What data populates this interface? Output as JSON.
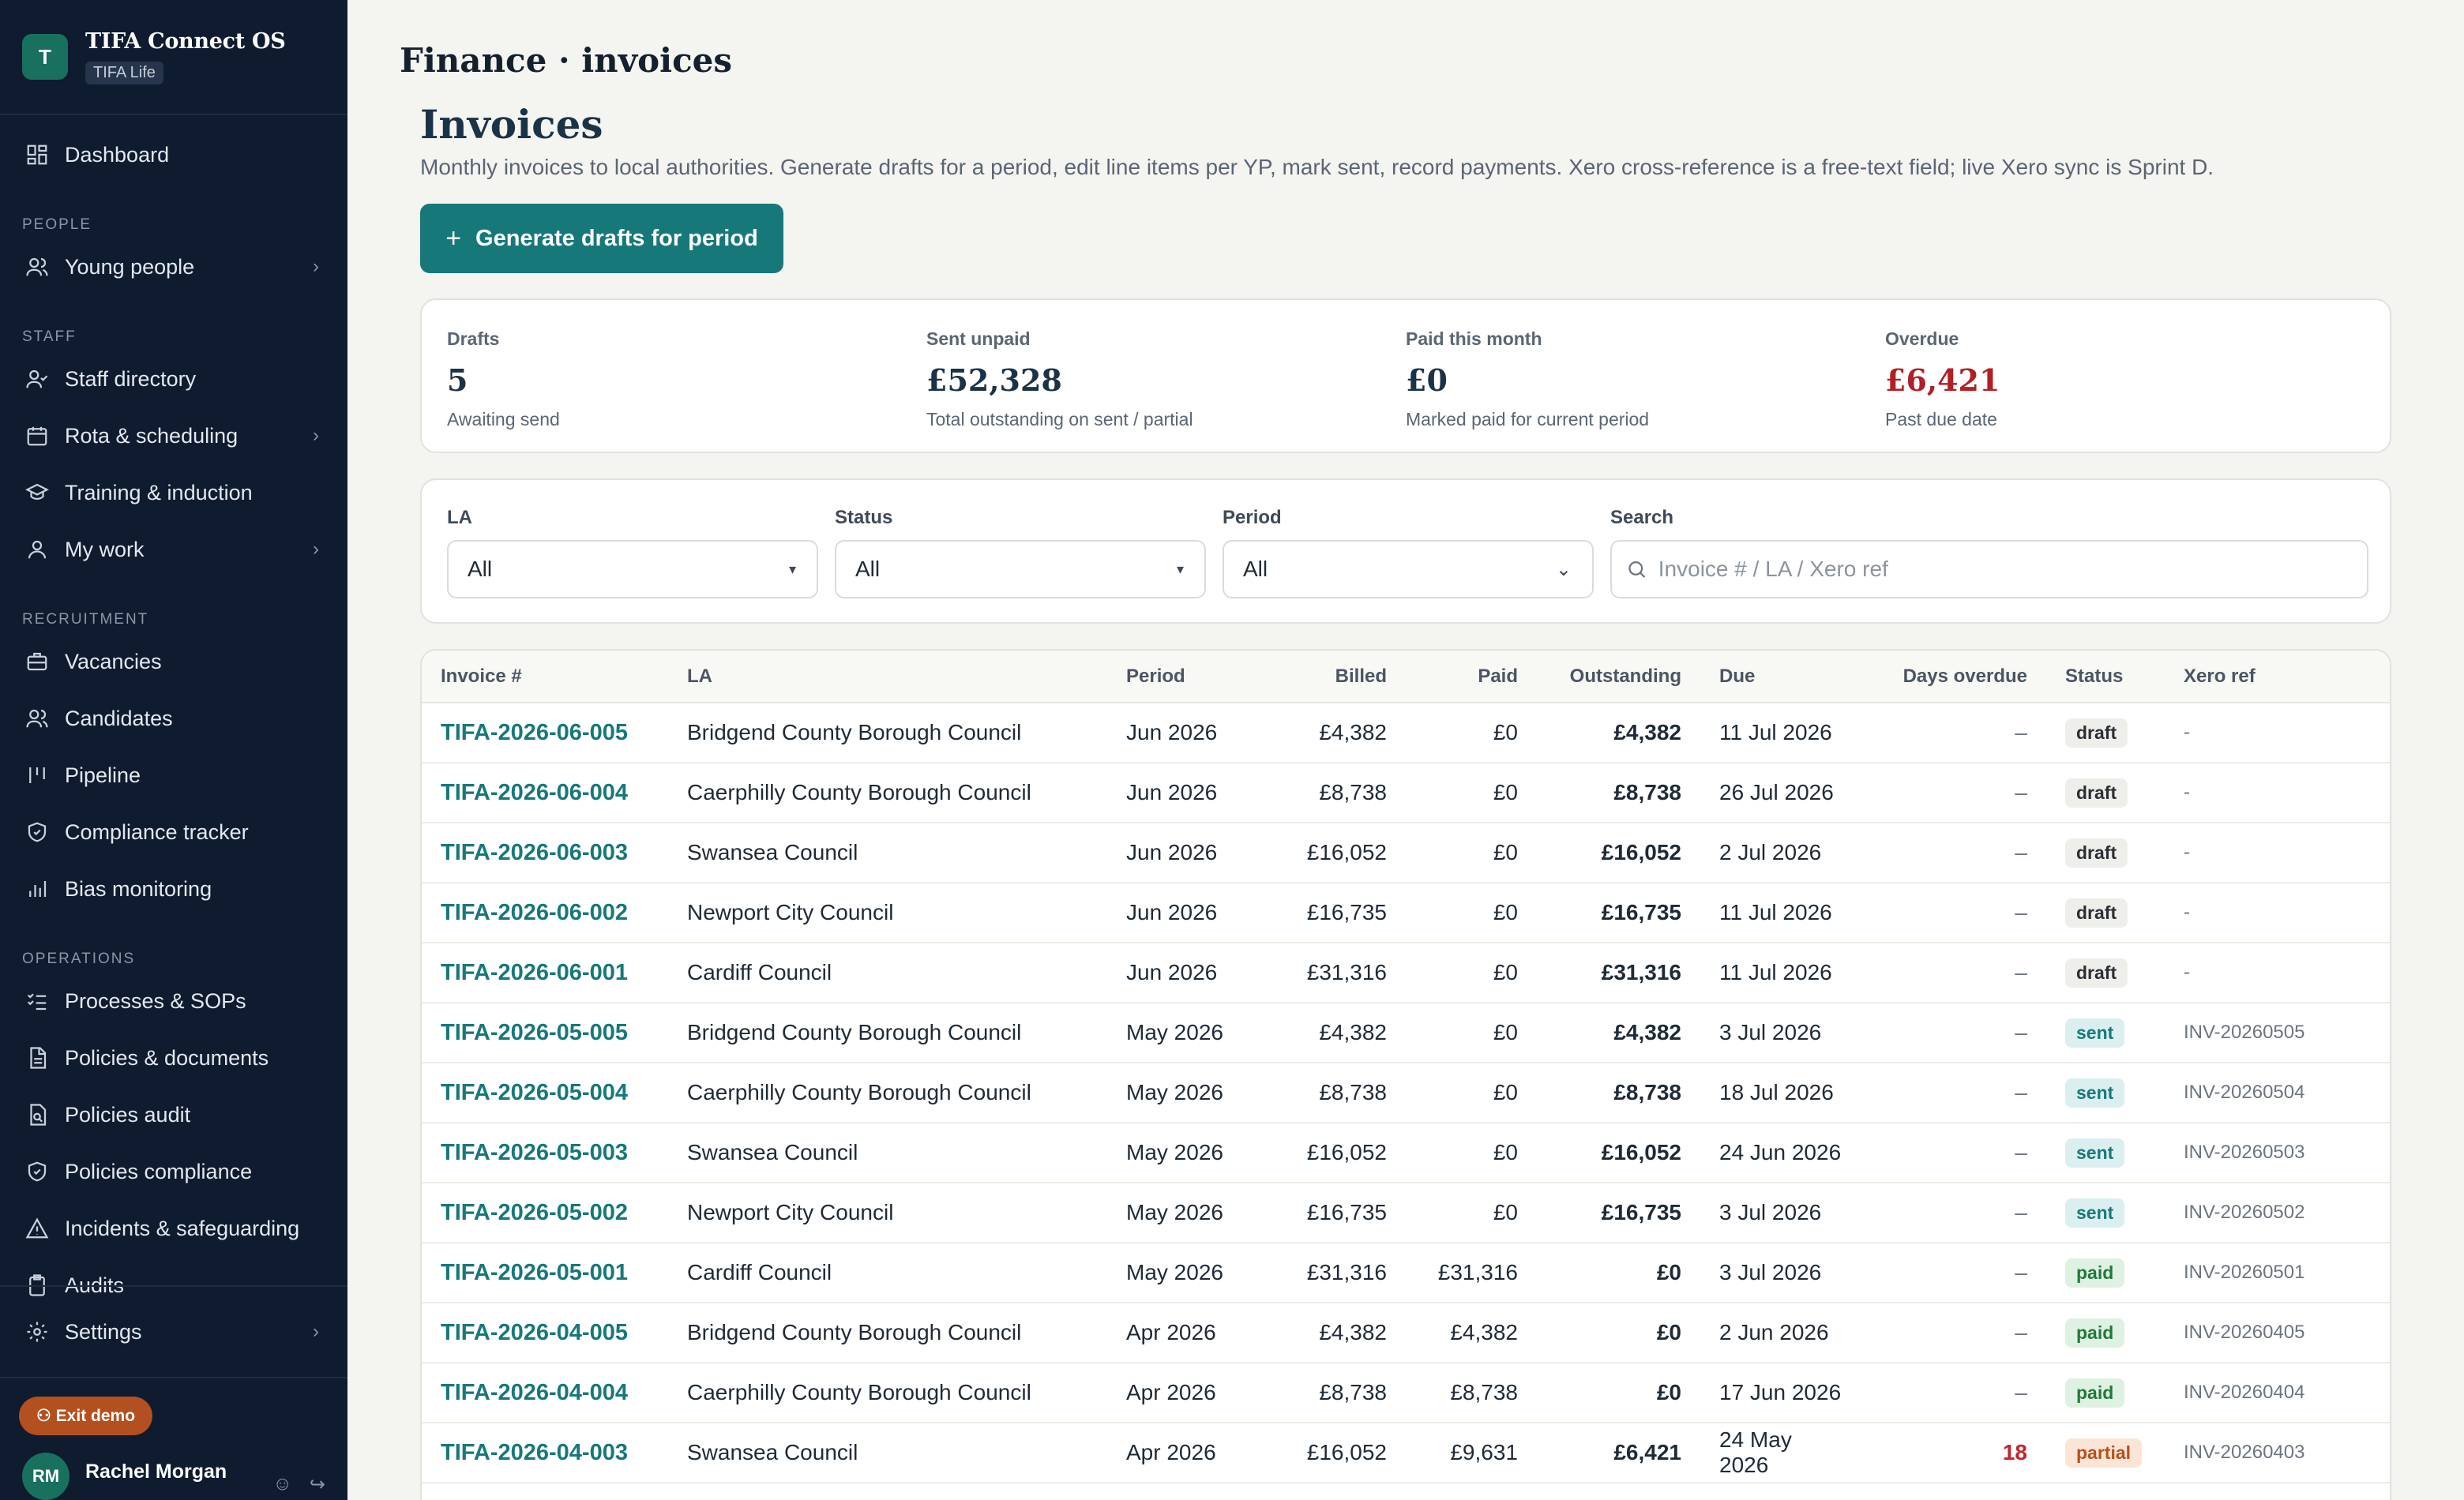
{
  "app": {
    "name": "TIFA Connect OS",
    "tag": "TIFA Life",
    "logo_letter": "T"
  },
  "sidebar": {
    "dashboard": {
      "label": "Dashboard",
      "icon": "dashboard-icon"
    },
    "sections": [
      {
        "title": "PEOPLE",
        "items": [
          {
            "label": "Young people",
            "icon": "users-icon",
            "chevron": true
          }
        ]
      },
      {
        "title": "STAFF",
        "items": [
          {
            "label": "Staff directory",
            "icon": "user-check-icon",
            "chevron": false
          },
          {
            "label": "Rota & scheduling",
            "icon": "calendar-icon",
            "chevron": true
          },
          {
            "label": "Training & induction",
            "icon": "graduation-cap-icon",
            "chevron": false
          },
          {
            "label": "My work",
            "icon": "user-icon",
            "chevron": true
          }
        ]
      },
      {
        "title": "RECRUITMENT",
        "items": [
          {
            "label": "Vacancies",
            "icon": "briefcase-icon",
            "chevron": false
          },
          {
            "label": "Candidates",
            "icon": "users-icon",
            "chevron": false
          },
          {
            "label": "Pipeline",
            "icon": "kanban-icon",
            "chevron": false
          },
          {
            "label": "Compliance tracker",
            "icon": "shield-check-icon",
            "chevron": false
          },
          {
            "label": "Bias monitoring",
            "icon": "bar-chart-icon",
            "chevron": false
          }
        ]
      },
      {
        "title": "OPERATIONS",
        "items": [
          {
            "label": "Processes & SOPs",
            "icon": "list-checks-icon",
            "chevron": false
          },
          {
            "label": "Policies & documents",
            "icon": "file-text-icon",
            "chevron": false
          },
          {
            "label": "Policies audit",
            "icon": "file-search-icon",
            "chevron": false
          },
          {
            "label": "Policies compliance",
            "icon": "shield-check-icon",
            "chevron": false
          },
          {
            "label": "Incidents & safeguarding",
            "icon": "alert-triangle-icon",
            "chevron": false
          },
          {
            "label": "Audits",
            "icon": "clipboard-icon",
            "chevron": false
          }
        ]
      }
    ],
    "settings": {
      "label": "Settings",
      "icon": "gear-icon"
    },
    "exit_demo": "Exit demo",
    "user": {
      "initials": "RM",
      "name": "Rachel Morgan"
    }
  },
  "header": {
    "breadcrumb": "Finance · invoices"
  },
  "page": {
    "title": "Invoices",
    "description": "Monthly invoices to local authorities. Generate drafts for a period, edit line items per YP, mark sent, record payments. Xero cross-reference is a free-text field; live Xero sync is Sprint D.",
    "generate_button": "Generate drafts for period"
  },
  "stats": [
    {
      "label": "Drafts",
      "value": "5",
      "sub": "Awaiting send",
      "color": "#1b3346"
    },
    {
      "label": "Sent unpaid",
      "value": "£52,328",
      "sub": "Total outstanding on sent / partial",
      "color": "#1b3346"
    },
    {
      "label": "Paid this month",
      "value": "£0",
      "sub": "Marked paid for current period",
      "color": "#1b3346"
    },
    {
      "label": "Overdue",
      "value": "£6,421",
      "sub": "Past due date",
      "color": "#b21f24"
    }
  ],
  "filters": {
    "la": {
      "label": "LA",
      "value": "All"
    },
    "status": {
      "label": "Status",
      "value": "All"
    },
    "period": {
      "label": "Period",
      "value": "All"
    },
    "search": {
      "label": "Search",
      "placeholder": "Invoice # / LA / Xero ref",
      "value": ""
    }
  },
  "table": {
    "columns": [
      "Invoice #",
      "LA",
      "Period",
      "Billed",
      "Paid",
      "Outstanding",
      "Due",
      "Days overdue",
      "Status",
      "Xero ref"
    ],
    "rows": [
      {
        "invoice": "TIFA-2026-06-005",
        "la": "Bridgend County Borough Council",
        "period": "Jun 2026",
        "billed": "£4,382",
        "paid": "£0",
        "outstanding": "£4,382",
        "due": "11 Jul 2026",
        "days_overdue": "–",
        "status": "draft",
        "xero": "-"
      },
      {
        "invoice": "TIFA-2026-06-004",
        "la": "Caerphilly County Borough Council",
        "period": "Jun 2026",
        "billed": "£8,738",
        "paid": "£0",
        "outstanding": "£8,738",
        "due": "26 Jul 2026",
        "days_overdue": "–",
        "status": "draft",
        "xero": "-"
      },
      {
        "invoice": "TIFA-2026-06-003",
        "la": "Swansea Council",
        "period": "Jun 2026",
        "billed": "£16,052",
        "paid": "£0",
        "outstanding": "£16,052",
        "due": "2 Jul 2026",
        "days_overdue": "–",
        "status": "draft",
        "xero": "-"
      },
      {
        "invoice": "TIFA-2026-06-002",
        "la": "Newport City Council",
        "period": "Jun 2026",
        "billed": "£16,735",
        "paid": "£0",
        "outstanding": "£16,735",
        "due": "11 Jul 2026",
        "days_overdue": "–",
        "status": "draft",
        "xero": "-"
      },
      {
        "invoice": "TIFA-2026-06-001",
        "la": "Cardiff Council",
        "period": "Jun 2026",
        "billed": "£31,316",
        "paid": "£0",
        "outstanding": "£31,316",
        "due": "11 Jul 2026",
        "days_overdue": "–",
        "status": "draft",
        "xero": "-"
      },
      {
        "invoice": "TIFA-2026-05-005",
        "la": "Bridgend County Borough Council",
        "period": "May 2026",
        "billed": "£4,382",
        "paid": "£0",
        "outstanding": "£4,382",
        "due": "3 Jul 2026",
        "days_overdue": "–",
        "status": "sent",
        "xero": "INV-20260505"
      },
      {
        "invoice": "TIFA-2026-05-004",
        "la": "Caerphilly County Borough Council",
        "period": "May 2026",
        "billed": "£8,738",
        "paid": "£0",
        "outstanding": "£8,738",
        "due": "18 Jul 2026",
        "days_overdue": "–",
        "status": "sent",
        "xero": "INV-20260504"
      },
      {
        "invoice": "TIFA-2026-05-003",
        "la": "Swansea Council",
        "period": "May 2026",
        "billed": "£16,052",
        "paid": "£0",
        "outstanding": "£16,052",
        "due": "24 Jun 2026",
        "days_overdue": "–",
        "status": "sent",
        "xero": "INV-20260503"
      },
      {
        "invoice": "TIFA-2026-05-002",
        "la": "Newport City Council",
        "period": "May 2026",
        "billed": "£16,735",
        "paid": "£0",
        "outstanding": "£16,735",
        "due": "3 Jul 2026",
        "days_overdue": "–",
        "status": "sent",
        "xero": "INV-20260502"
      },
      {
        "invoice": "TIFA-2026-05-001",
        "la": "Cardiff Council",
        "period": "May 2026",
        "billed": "£31,316",
        "paid": "£31,316",
        "outstanding": "£0",
        "due": "3 Jul 2026",
        "days_overdue": "–",
        "status": "paid",
        "xero": "INV-20260501"
      },
      {
        "invoice": "TIFA-2026-04-005",
        "la": "Bridgend County Borough Council",
        "period": "Apr 2026",
        "billed": "£4,382",
        "paid": "£4,382",
        "outstanding": "£0",
        "due": "2 Jun 2026",
        "days_overdue": "–",
        "status": "paid",
        "xero": "INV-20260405"
      },
      {
        "invoice": "TIFA-2026-04-004",
        "la": "Caerphilly County Borough Council",
        "period": "Apr 2026",
        "billed": "£8,738",
        "paid": "£8,738",
        "outstanding": "£0",
        "due": "17 Jun 2026",
        "days_overdue": "–",
        "status": "paid",
        "xero": "INV-20260404"
      },
      {
        "invoice": "TIFA-2026-04-003",
        "la": "Swansea Council",
        "period": "Apr 2026",
        "billed": "£16,052",
        "paid": "£9,631",
        "outstanding": "£6,421",
        "due": "24 May 2026",
        "days_overdue": "18",
        "status": "partial",
        "xero": "INV-20260403"
      }
    ]
  }
}
